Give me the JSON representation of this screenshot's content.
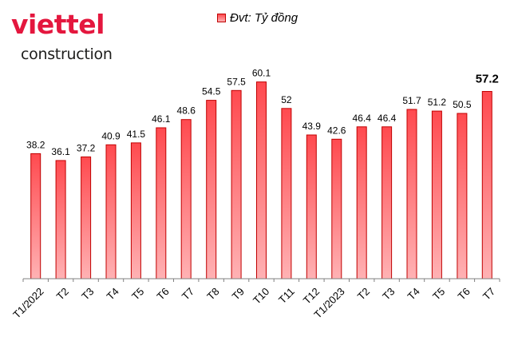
{
  "brand": {
    "wordmark": "viettel",
    "subtitle": "construction",
    "color": "#e4173e"
  },
  "legend": {
    "label": "Đvt: Tỷ đồng"
  },
  "chart_data": {
    "type": "bar",
    "categories": [
      "T1/2022",
      "T2",
      "T3",
      "T4",
      "T5",
      "T6",
      "T7",
      "T8",
      "T9",
      "T10",
      "T11",
      "T12",
      "T1/2023",
      "T2",
      "T3",
      "T4",
      "T5",
      "T6",
      "T7"
    ],
    "series": [
      {
        "name": "Đvt: Tỷ đồng",
        "values": [
          38.2,
          36.1,
          37.2,
          40.9,
          41.5,
          46.1,
          48.6,
          54.5,
          57.5,
          60.1,
          52,
          43.9,
          42.6,
          46.4,
          46.4,
          51.7,
          51.2,
          50.5,
          57.2
        ]
      }
    ],
    "data_labels": [
      "38.2",
      "36.1",
      "37.2",
      "40.9",
      "41.5",
      "46.1",
      "48.6",
      "54.5",
      "57.5",
      "60.1",
      "52",
      "43.9",
      "42.6",
      "46.4",
      "46.4",
      "51.7",
      "51.2",
      "50.5",
      "57.2"
    ],
    "highlighted_label_index": 18,
    "ylim": [
      0,
      65
    ],
    "grid": false,
    "legend_position": "top",
    "colors": {
      "bar_top": "#ff4a4f",
      "bar_bottom": "#ffb2b4",
      "bar_border": "#c00000",
      "axis": "#808080"
    }
  }
}
